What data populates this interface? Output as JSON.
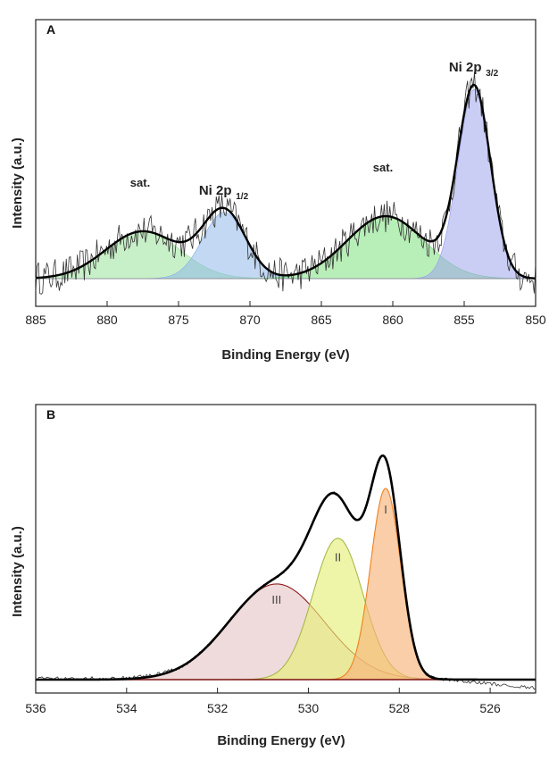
{
  "chart_data": [
    {
      "panel": "A",
      "type": "line",
      "xlabel": "Binding Energy (eV)",
      "ylabel": "Intensity (a.u.)",
      "xlim": [
        885,
        850
      ],
      "x_reversed": true,
      "xticks": [
        885,
        880,
        875,
        870,
        865,
        860,
        855,
        850
      ],
      "yticks": [],
      "grid": false,
      "baseline": 0,
      "ylim": [
        -0.15,
        1.1
      ],
      "components": [
        {
          "label": "sat.",
          "center": 877.5,
          "height": 0.25,
          "sigma": 2.6,
          "color": "#9be39b"
        },
        {
          "label": "Ni 2p",
          "label_sub": "1/2",
          "center": 871.8,
          "height": 0.35,
          "sigma": 1.5,
          "color": "#8fb8ea"
        },
        {
          "label": "sat.",
          "center": 860.5,
          "height": 0.33,
          "sigma": 2.7,
          "color": "#7ee07e"
        },
        {
          "label": "Ni 2p",
          "label_sub": "3/2",
          "center": 854.3,
          "height": 1.0,
          "sigma": 1.15,
          "color": "#9ea6ec"
        }
      ],
      "series": [
        {
          "role": "envelope"
        },
        {
          "role": "raw"
        }
      ]
    },
    {
      "panel": "B",
      "type": "line",
      "xlabel": "Binding Energy (eV)",
      "ylabel": "Intensity (a.u.)",
      "xlim": [
        536,
        525
      ],
      "x_reversed": true,
      "xticks": [
        536,
        534,
        532,
        530,
        528,
        526
      ],
      "yticks": [],
      "grid": false,
      "baseline": 0,
      "ylim": [
        -0.05,
        1.35
      ],
      "components": [
        {
          "label": "III",
          "center": 530.7,
          "height": 0.46,
          "sigma": 1.05,
          "color": "#e6c8c8",
          "edge": "#8b1a1a"
        },
        {
          "label": "II",
          "center": 529.35,
          "height": 0.68,
          "sigma": 0.55,
          "color": "#e6f07a",
          "edge": "#a8b84a"
        },
        {
          "label": "I",
          "center": 528.3,
          "height": 0.92,
          "sigma": 0.33,
          "color": "#f7b47a",
          "edge": "#f08020"
        }
      ],
      "series": [
        {
          "role": "envelope"
        },
        {
          "role": "raw"
        }
      ]
    }
  ]
}
